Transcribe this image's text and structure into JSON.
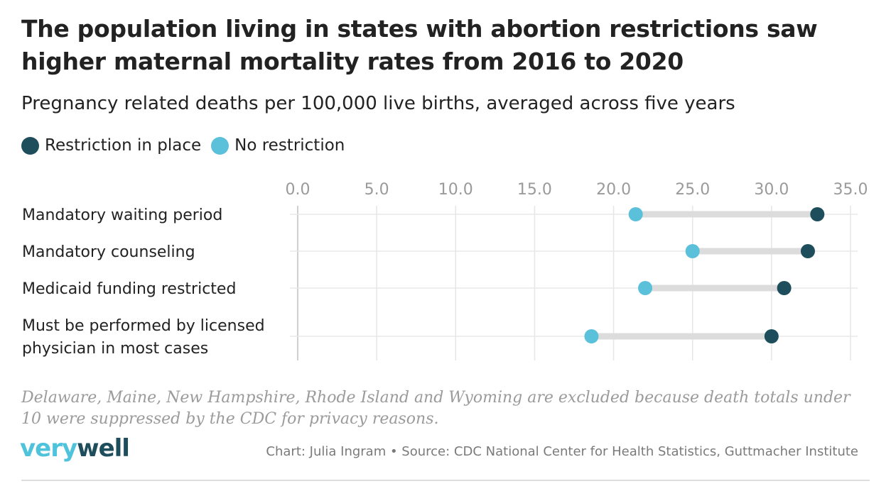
{
  "title": "The population living in states with abortion restrictions saw higher maternal mortality rates from 2016 to 2020",
  "subtitle": "Pregnancy related deaths per 100,000 live births, averaged across five years",
  "legend": [
    {
      "label": "Restriction in place",
      "color": "#1e4d5c"
    },
    {
      "label": "No restriction",
      "color": "#5bc0d9"
    }
  ],
  "chart_data": {
    "type": "dumbbell",
    "categories": [
      "Mandatory waiting period",
      "Mandatory counseling",
      "Medicaid funding restricted",
      "Must be performed by licensed physician in most cases"
    ],
    "series": [
      {
        "name": "Restriction in place",
        "color": "#1e4d5c",
        "values": [
          32.9,
          32.3,
          30.8,
          30.0
        ]
      },
      {
        "name": "No restriction",
        "color": "#5bc0d9",
        "values": [
          21.4,
          25.0,
          22.0,
          18.6
        ]
      }
    ],
    "xlim": [
      0,
      35
    ],
    "xticks": [
      "0.0",
      "5.0",
      "10.0",
      "15.0",
      "20.0",
      "25.0",
      "30.0",
      "35.0"
    ],
    "grid": true,
    "legend_position": "top-left"
  },
  "note": "Delaware, Maine, New Hampshire, Rhode Island and Wyoming are excluded because death totals under 10 were suppressed by the CDC for privacy reasons.",
  "logo": {
    "part1": "very",
    "part2": "well"
  },
  "source": "Chart: Julia Ingram • Source: CDC National Center for Health Statistics, Guttmacher Institute"
}
